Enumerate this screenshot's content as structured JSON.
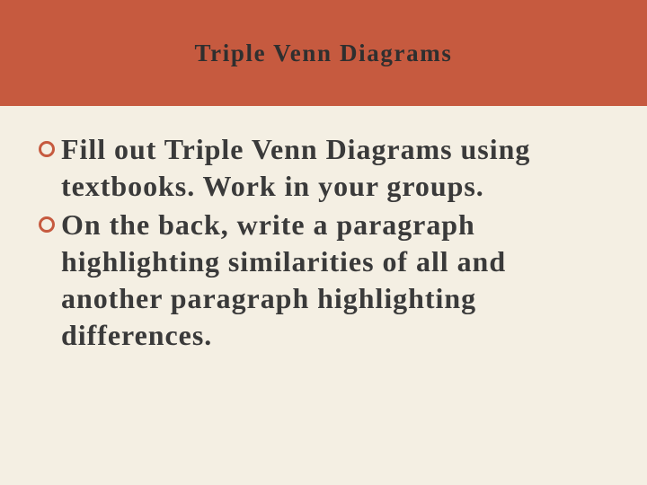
{
  "slide": {
    "background_color": "#f4efe3",
    "header": {
      "background_color": "#c65a3f",
      "title": "Triple Venn Diagrams",
      "title_color": "#2f2f2f",
      "title_fontsize": 27,
      "title_fontweight": "bold"
    },
    "body": {
      "text_color": "#3a3a3a",
      "text_fontsize": 32,
      "text_fontweight": "bold",
      "bullet_stroke_color": "#c65a3f",
      "bullet_stroke_width": 3,
      "bullet_diameter": 20,
      "items": [
        {
          "text": "Fill out Triple Venn Diagrams using textbooks.  Work in your groups."
        },
        {
          "text": "On the back, write a paragraph highlighting similarities of all and another paragraph highlighting differences."
        }
      ]
    }
  }
}
